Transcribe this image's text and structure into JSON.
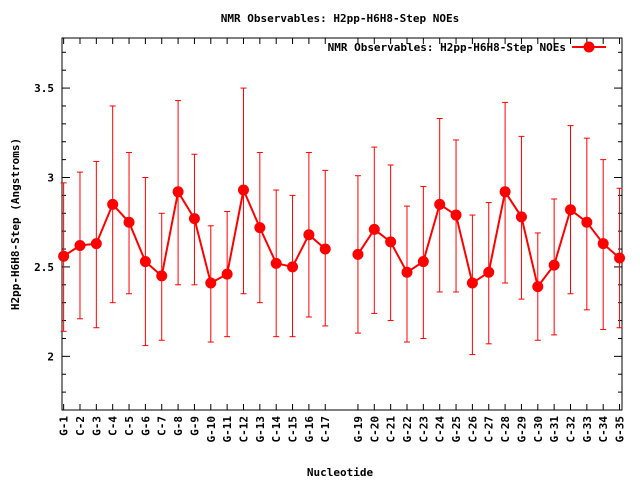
{
  "chart_data": {
    "type": "line",
    "title": "NMR Observables: H2pp-H6H8-Step NOEs",
    "xlabel": "Nucleotide",
    "ylabel": "H2pp-H6H8-Step (Angstroms)",
    "ylim": [
      1.7,
      3.78
    ],
    "yticks": [
      "2",
      "2.5",
      "3",
      "3.5"
    ],
    "categories": [
      "G-1",
      "C-2",
      "G-3",
      "C-4",
      "C-5",
      "G-6",
      "C-7",
      "G-8",
      "G-9",
      "G-10",
      "G-11",
      "C-12",
      "G-13",
      "C-14",
      "C-15",
      "G-16",
      "C-17",
      "G-19",
      "C-20",
      "C-21",
      "G-22",
      "C-23",
      "C-24",
      "G-25",
      "C-26",
      "C-27",
      "C-28",
      "G-29",
      "C-30",
      "G-31",
      "C-32",
      "G-33",
      "C-34",
      "G-35"
    ],
    "x_positions": [
      1,
      2,
      3,
      4,
      5,
      6,
      7,
      8,
      9,
      10,
      11,
      12,
      13,
      14,
      15,
      16,
      17,
      19,
      20,
      21,
      22,
      23,
      24,
      25,
      26,
      27,
      28,
      29,
      30,
      31,
      32,
      33,
      34,
      35
    ],
    "series": [
      {
        "name": "NMR Observables: H2pp-H6H8-Step NOEs",
        "color": "#ff0000",
        "segments": [
          {
            "x": [
              1,
              2,
              3,
              4,
              5,
              6,
              7,
              8,
              9,
              10,
              11,
              12,
              13,
              14,
              15,
              16,
              17
            ],
            "y": [
              2.56,
              2.62,
              2.63,
              2.85,
              2.75,
              2.53,
              2.45,
              2.92,
              2.77,
              2.41,
              2.46,
              2.93,
              2.72,
              2.52,
              2.5,
              2.68,
              2.6
            ],
            "err_low": [
              2.14,
              2.21,
              2.16,
              2.3,
              2.35,
              2.06,
              2.09,
              2.4,
              2.4,
              2.08,
              2.11,
              2.35,
              2.3,
              2.11,
              2.11,
              2.22,
              2.17
            ],
            "err_high": [
              2.97,
              3.03,
              3.09,
              3.4,
              3.14,
              3.0,
              2.8,
              3.43,
              3.13,
              2.73,
              2.81,
              3.5,
              3.14,
              2.93,
              2.9,
              3.14,
              3.04
            ]
          },
          {
            "x": [
              19,
              20,
              21,
              22,
              23,
              24,
              25,
              26,
              27,
              28,
              29,
              30,
              31,
              32,
              33,
              34,
              35
            ],
            "y": [
              2.57,
              2.71,
              2.64,
              2.47,
              2.53,
              2.85,
              2.79,
              2.41,
              2.47,
              2.92,
              2.78,
              2.39,
              2.51,
              2.82,
              2.75,
              2.63,
              2.55
            ],
            "err_low": [
              2.13,
              2.24,
              2.2,
              2.08,
              2.1,
              2.36,
              2.36,
              2.01,
              2.07,
              2.41,
              2.32,
              2.09,
              2.12,
              2.35,
              2.26,
              2.15,
              2.16
            ],
            "err_high": [
              3.01,
              3.17,
              3.07,
              2.84,
              2.95,
              3.33,
              3.21,
              2.79,
              2.86,
              3.42,
              3.23,
              2.69,
              2.88,
              3.29,
              3.22,
              3.1,
              2.94
            ]
          }
        ]
      }
    ],
    "legend_position": "top-right",
    "grid": false
  }
}
